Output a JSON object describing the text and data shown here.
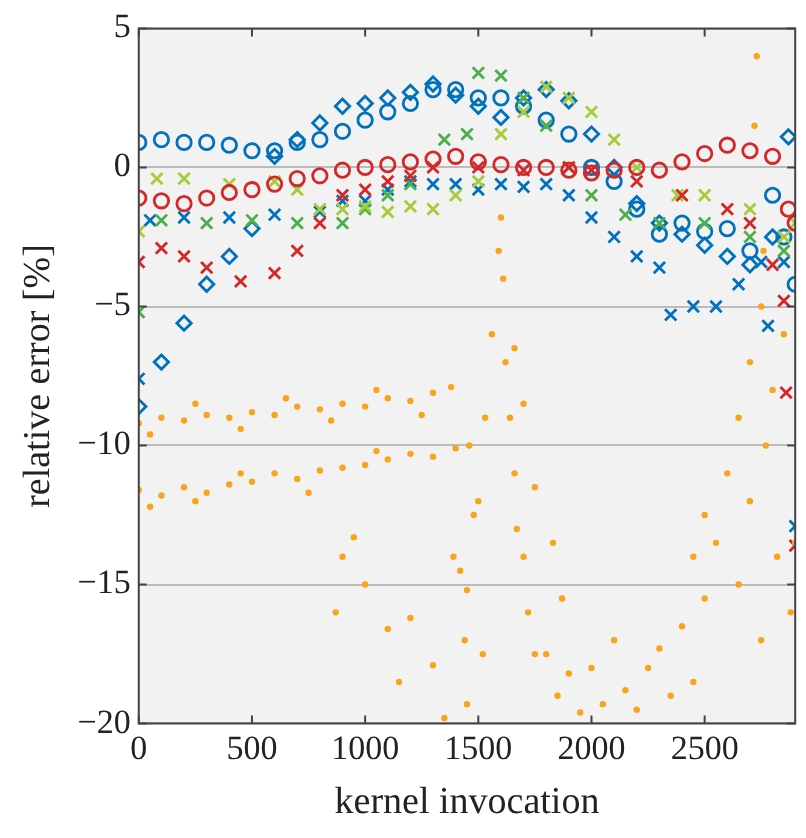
{
  "chart_data": {
    "type": "scatter",
    "xlabel": "kernel invocation",
    "ylabel": "relative error [%]",
    "xlim": [
      0,
      2900
    ],
    "ylim": [
      -20,
      5
    ],
    "xticks": [
      0,
      500,
      1000,
      1500,
      2000,
      2500
    ],
    "yticks": [
      -20,
      -15,
      -10,
      -5,
      0,
      5
    ],
    "grid": "y",
    "legend": false,
    "series": [
      {
        "color": "#0072bd",
        "marker": "circle",
        "x": [
          0,
          100,
          200,
          300,
          400,
          500,
          600,
          700,
          800,
          900,
          1000,
          1100,
          1200,
          1300,
          1400,
          1500,
          1600,
          1700,
          1800,
          1900,
          2000,
          2100,
          2200,
          2300,
          2400,
          2500,
          2600,
          2700,
          2800,
          2850,
          2900
        ],
        "values": [
          0.9,
          1.0,
          0.9,
          0.9,
          0.8,
          0.6,
          0.6,
          0.9,
          1.0,
          1.3,
          1.7,
          2.0,
          2.3,
          2.8,
          2.8,
          2.5,
          2.5,
          2.2,
          1.7,
          1.2,
          0.0,
          -0.5,
          -1.5,
          -2.4,
          -2.0,
          -2.3,
          -2.2,
          -3.0,
          -1.0,
          -2.5,
          -4.2
        ]
      },
      {
        "color": "#0072bd",
        "marker": "diamond",
        "x": [
          0,
          100,
          200,
          300,
          400,
          500,
          600,
          700,
          800,
          900,
          1000,
          1100,
          1200,
          1300,
          1400,
          1500,
          1600,
          1700,
          1800,
          1900,
          2000,
          2100,
          2200,
          2300,
          2400,
          2500,
          2600,
          2700,
          2800,
          2870
        ],
        "values": [
          -8.6,
          -7.0,
          -5.6,
          -4.2,
          -3.2,
          -2.2,
          0.4,
          1.0,
          1.6,
          2.2,
          2.3,
          2.5,
          2.7,
          3.0,
          2.6,
          2.2,
          1.8,
          2.5,
          2.8,
          2.4,
          1.2,
          0.0,
          -1.3,
          -2.0,
          -2.4,
          -2.8,
          -3.2,
          -3.5,
          -2.5,
          1.1
        ]
      },
      {
        "color": "#0072bd",
        "marker": "cross",
        "x": [
          0,
          50,
          200,
          400,
          600,
          800,
          900,
          1000,
          1100,
          1200,
          1300,
          1400,
          1500,
          1600,
          1700,
          1800,
          1900,
          2000,
          2100,
          2200,
          2300,
          2350,
          2450,
          2550,
          2650,
          2750,
          2780,
          2850,
          2900
        ],
        "values": [
          -7.6,
          -1.9,
          -1.8,
          -1.8,
          -1.7,
          -1.6,
          -1.2,
          -1.2,
          -0.8,
          -0.5,
          -0.6,
          -0.6,
          -0.8,
          -0.6,
          -0.7,
          -0.6,
          -1.0,
          -1.8,
          -2.5,
          -3.2,
          -3.6,
          -5.3,
          -5.0,
          -5.0,
          -4.2,
          -3.4,
          -5.7,
          -3.4,
          -12.9
        ]
      },
      {
        "color": "#4daf4a",
        "marker": "cross",
        "x": [
          0,
          100,
          300,
          500,
          700,
          900,
          1000,
          1100,
          1200,
          1350,
          1450,
          1500,
          1600,
          1700,
          1800,
          1900,
          2000,
          2150,
          2300,
          2500,
          2700,
          2850
        ],
        "values": [
          -5.2,
          -1.9,
          -2.0,
          -1.9,
          -2.0,
          -2.0,
          -1.5,
          -1.0,
          -0.6,
          1.0,
          1.2,
          3.4,
          3.3,
          2.5,
          1.5,
          0.0,
          -1.0,
          -1.7,
          -2.0,
          -2.0,
          -2.5,
          -3.0
        ]
      },
      {
        "color": "#a6cc3a",
        "marker": "cross",
        "x": [
          0,
          80,
          200,
          400,
          600,
          700,
          800,
          900,
          1000,
          1100,
          1200,
          1300,
          1400,
          1500,
          1600,
          1700,
          1800,
          1900,
          2000,
          2100,
          2200,
          2380,
          2500,
          2700,
          2850,
          2900
        ],
        "values": [
          -2.3,
          -0.4,
          -0.4,
          -0.6,
          -0.5,
          -0.8,
          -1.5,
          -1.5,
          -1.4,
          -1.6,
          -1.4,
          -1.5,
          -1.0,
          -0.5,
          1.2,
          2.0,
          2.9,
          2.5,
          2.0,
          1.0,
          0.0,
          -1.0,
          -1.0,
          -1.5,
          -2.5,
          -2.0
        ]
      },
      {
        "color": "#d62728",
        "marker": "circle",
        "x": [
          0,
          100,
          200,
          300,
          400,
          500,
          600,
          700,
          800,
          900,
          1000,
          1100,
          1200,
          1300,
          1400,
          1500,
          1600,
          1700,
          1800,
          1900,
          2000,
          2100,
          2200,
          2300,
          2400,
          2500,
          2600,
          2700,
          2800,
          2870,
          2900
        ],
        "values": [
          -1.1,
          -1.2,
          -1.3,
          -1.1,
          -0.9,
          -0.8,
          -0.6,
          -0.4,
          -0.3,
          -0.1,
          0.0,
          0.1,
          0.2,
          0.3,
          0.4,
          0.2,
          0.1,
          0.0,
          0.0,
          -0.1,
          -0.2,
          -0.1,
          0.0,
          -0.1,
          0.2,
          0.5,
          0.8,
          0.6,
          0.4,
          -1.5,
          -2.0
        ]
      },
      {
        "color": "#d62728",
        "marker": "cross",
        "x": [
          0,
          100,
          200,
          300,
          450,
          600,
          700,
          800,
          900,
          1000,
          1100,
          1200,
          1300,
          1500,
          1700,
          1900,
          2000,
          2200,
          2400,
          2600,
          2700,
          2800,
          2850,
          2860,
          2900
        ],
        "values": [
          -3.4,
          -2.9,
          -3.2,
          -3.6,
          -4.1,
          -3.8,
          -3.0,
          -2.0,
          -1.0,
          -0.8,
          -0.5,
          -0.3,
          0.0,
          0.0,
          -0.1,
          0.0,
          -0.1,
          -0.5,
          -1.0,
          -1.5,
          -2.0,
          -3.5,
          -4.8,
          -8.1,
          -13.6
        ]
      },
      {
        "color": "#f7a61c",
        "marker": "circle",
        "x": [
          0,
          50,
          100,
          200,
          250,
          300,
          400,
          450,
          500,
          600,
          650,
          700,
          800,
          850,
          900,
          1000,
          1050,
          1100,
          1200,
          1250,
          1300,
          1380,
          0,
          50,
          100,
          200,
          250,
          300,
          400,
          450,
          500,
          600,
          700,
          750,
          800,
          900,
          1000,
          1050,
          1100,
          1200,
          1300,
          1400,
          870,
          900,
          950,
          1000,
          1100,
          1150,
          1200,
          1300,
          1350,
          1390,
          1420,
          1440,
          1450,
          1450,
          1460,
          1480,
          1500,
          1520,
          1530,
          1560,
          1590,
          1600,
          1610,
          1620,
          1640,
          1660,
          1660,
          1670,
          1700,
          1700,
          1720,
          1750,
          1750,
          1800,
          1830,
          1870,
          1850,
          1900,
          1950,
          2000,
          2050,
          2100,
          2150,
          2200,
          2250,
          2300,
          2350,
          2400,
          2450,
          2450,
          2500,
          2500,
          2550,
          2600,
          2650,
          2650,
          2700,
          2700,
          2720,
          2730,
          2750,
          2750,
          2760,
          2770,
          2800,
          2820,
          2850,
          2880,
          2900
        ],
        "values": [
          -9.2,
          -9.6,
          -9.0,
          -9.1,
          -8.5,
          -8.9,
          -9.0,
          -9.4,
          -8.8,
          -8.9,
          -8.3,
          -8.6,
          -8.7,
          -9.1,
          -8.5,
          -8.6,
          -8.0,
          -8.3,
          -8.4,
          -8.9,
          -8.1,
          -7.9,
          -11.6,
          -12.2,
          -11.8,
          -11.5,
          -12.0,
          -11.7,
          -11.4,
          -11.0,
          -11.3,
          -11.0,
          -11.2,
          -11.7,
          -10.9,
          -10.8,
          -10.7,
          -10.2,
          -10.5,
          -10.3,
          -10.4,
          -10.1,
          -16.0,
          -14.0,
          -13.3,
          -15.0,
          -16.6,
          -18.5,
          -16.2,
          -17.9,
          -19.8,
          -14.0,
          -14.5,
          -17.0,
          -19.3,
          -15.2,
          -10.0,
          -12.5,
          -12.0,
          -17.5,
          -9.0,
          -6.0,
          -3.0,
          -1.8,
          -4.0,
          -7.0,
          -9.0,
          -11.0,
          -6.5,
          -13.0,
          -14.0,
          -8.5,
          -16.0,
          -17.5,
          -11.5,
          -17.5,
          -13.5,
          -15.5,
          -19.0,
          -18.2,
          -19.6,
          -18.0,
          -19.3,
          -17.0,
          -18.8,
          -19.5,
          -18.0,
          -17.3,
          -19.0,
          -16.5,
          -18.5,
          -14.0,
          -15.5,
          -12.5,
          -13.5,
          -11.0,
          -9.0,
          -15.0,
          -7.0,
          -12.0,
          1.5,
          4.0,
          -5.0,
          -17.0,
          -3.0,
          -10.0,
          -8.0,
          -14.0,
          -6.0,
          -16.0,
          -13.5
        ]
      }
    ]
  }
}
